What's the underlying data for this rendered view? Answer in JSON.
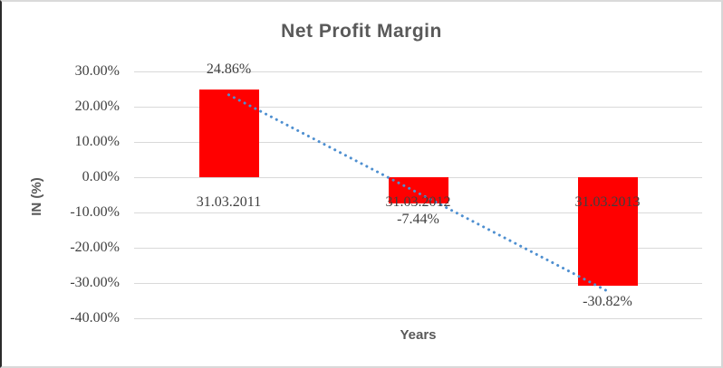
{
  "chart_data": {
    "type": "bar",
    "title": "Net Profit Margin",
    "categories": [
      "31.03.2011",
      "31.03.2012",
      "31.03.2013"
    ],
    "values": [
      24.86,
      -7.44,
      -30.82
    ],
    "data_labels": [
      "24.86%",
      "-7.44%",
      "-30.82%"
    ],
    "xlabel": "Years",
    "ylabel": "IN (%)",
    "ylim": [
      -40,
      30
    ],
    "yticks": [
      30,
      20,
      10,
      0,
      -10,
      -20,
      -30,
      -40
    ],
    "ytick_labels": [
      "30.00%",
      "20.00%",
      "10.00%",
      "0.00%",
      "-10.00%",
      "-20.00%",
      "-30.00%",
      "-40.00%"
    ],
    "grid": true,
    "legend": "none",
    "bar_color": "#ff0000",
    "label_color": "#3f3f3f",
    "title_color": "#595959",
    "gridline_color": "#d9d9d9",
    "trendline": {
      "type": "linear",
      "style": "dotted",
      "color": "#4e8fd0",
      "endpoints": [
        23.37,
        -32.31
      ]
    }
  }
}
